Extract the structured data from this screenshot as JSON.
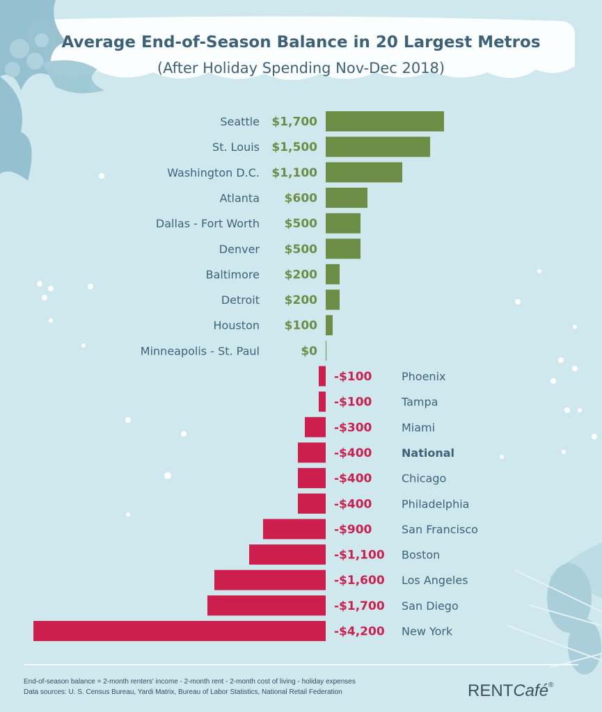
{
  "title": "Average End-of-Season Balance in 20 Largest Metros",
  "subtitle": "(After Holiday Spending Nov-Dec 2018)",
  "footnote_line1": "End-of-season balance = 2-month renters' income - 2-month rent - 2-month cost of living - holiday expenses",
  "footnote_line2": "Data sources: U. S. Census Bureau, Yardi Matrix, Bureau of Labor Statistics, National Retail Federation",
  "logo_rent": "RENT",
  "logo_cafe": "Café",
  "logo_reg": "®",
  "colors": {
    "positive": "#6b8d45",
    "negative": "#cc1f4e",
    "label": "#3d6176",
    "bg": "#cfe8ee"
  },
  "chart_data": {
    "type": "bar",
    "orientation": "horizontal",
    "categories": [
      "Seattle",
      "St. Louis",
      "Washington D.C.",
      "Atlanta",
      "Dallas - Fort Worth",
      "Denver",
      "Baltimore",
      "Detroit",
      "Houston",
      "Minneapolis - St. Paul",
      "Phoenix",
      "Tampa",
      "Miami",
      "National",
      "Chicago",
      "Philadelphia",
      "San Francisco",
      "Boston",
      "Los Angeles",
      "San Diego",
      "New York"
    ],
    "values": [
      1700,
      1500,
      1100,
      600,
      500,
      500,
      200,
      200,
      100,
      0,
      -100,
      -100,
      -300,
      -400,
      -400,
      -400,
      -900,
      -1100,
      -1600,
      -1700,
      -4200
    ],
    "value_labels": [
      "$1,700",
      "$1,500",
      "$1,100",
      "$600",
      "$500",
      "$500",
      "$200",
      "$200",
      "$100",
      "$0",
      "-$100",
      "-$100",
      "-$300",
      "-$400",
      "-$400",
      "-$400",
      "-$900",
      "-$1,100",
      "-$1,600",
      "-$1,700",
      "-$4,200"
    ],
    "highlight": "National",
    "title": "Average End-of-Season Balance in 20 Largest Metros",
    "subtitle": "(After Holiday Spending Nov-Dec 2018)",
    "xlabel": "",
    "ylabel": "",
    "grid": false
  }
}
